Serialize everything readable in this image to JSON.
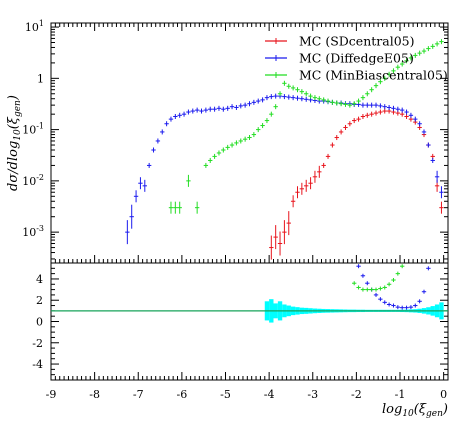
{
  "chart_data": [
    {
      "type": "scatter",
      "panel": "main",
      "xlabel": "log10(ξgen)",
      "ylabel": "dσ/dlog10(ξgen)",
      "yscale": "log",
      "xlim": [
        -9,
        0.1
      ],
      "ylim": [
        0.00025,
        12
      ],
      "y_ticks": [
        {
          "value": 0.001,
          "base": "10",
          "exp": "-3"
        },
        {
          "value": 0.01,
          "base": "10",
          "exp": "-2"
        },
        {
          "value": 0.1,
          "base": "10",
          "exp": "-1"
        },
        {
          "value": 1,
          "base": "1",
          "exp": ""
        },
        {
          "value": 10,
          "base": "10",
          "exp": "1"
        }
      ],
      "legend": {
        "placement": "top-right"
      },
      "series": [
        {
          "name": "MC (SDcentral05)",
          "color": "#e8141c",
          "points": [
            [
              -3.95,
              0.0005
            ],
            [
              -3.85,
              0.0008
            ],
            [
              -3.75,
              0.0006
            ],
            [
              -3.65,
              0.001
            ],
            [
              -3.55,
              0.0015
            ],
            [
              -3.45,
              0.004
            ],
            [
              -3.35,
              0.006
            ],
            [
              -3.25,
              0.007
            ],
            [
              -3.15,
              0.008
            ],
            [
              -3.05,
              0.009
            ],
            [
              -2.95,
              0.012
            ],
            [
              -2.85,
              0.015
            ],
            [
              -2.75,
              0.02
            ],
            [
              -2.65,
              0.03
            ],
            [
              -2.55,
              0.05
            ],
            [
              -2.45,
              0.07
            ],
            [
              -2.35,
              0.09
            ],
            [
              -2.25,
              0.11
            ],
            [
              -2.15,
              0.13
            ],
            [
              -2.05,
              0.15
            ],
            [
              -1.95,
              0.16
            ],
            [
              -1.85,
              0.18
            ],
            [
              -1.75,
              0.19
            ],
            [
              -1.65,
              0.2
            ],
            [
              -1.55,
              0.21
            ],
            [
              -1.45,
              0.22
            ],
            [
              -1.35,
              0.23
            ],
            [
              -1.25,
              0.23
            ],
            [
              -1.15,
              0.22
            ],
            [
              -1.05,
              0.21
            ],
            [
              -0.95,
              0.2
            ],
            [
              -0.85,
              0.18
            ],
            [
              -0.75,
              0.16
            ],
            [
              -0.65,
              0.14
            ],
            [
              -0.55,
              0.11
            ],
            [
              -0.45,
              0.08
            ],
            [
              -0.35,
              0.05
            ],
            [
              -0.25,
              0.03
            ],
            [
              -0.15,
              0.008
            ],
            [
              -0.05,
              0.003
            ]
          ]
        },
        {
          "name": "MC (DiffedgeE05)",
          "color": "#1a1aee",
          "points": [
            [
              -7.25,
              0.001
            ],
            [
              -7.15,
              0.002
            ],
            [
              -7.05,
              0.005
            ],
            [
              -6.95,
              0.009
            ],
            [
              -6.85,
              0.008
            ],
            [
              -6.75,
              0.02
            ],
            [
              -6.65,
              0.04
            ],
            [
              -6.55,
              0.06
            ],
            [
              -6.45,
              0.09
            ],
            [
              -6.35,
              0.13
            ],
            [
              -6.25,
              0.16
            ],
            [
              -6.15,
              0.18
            ],
            [
              -6.05,
              0.19
            ],
            [
              -5.95,
              0.2
            ],
            [
              -5.85,
              0.22
            ],
            [
              -5.75,
              0.23
            ],
            [
              -5.65,
              0.24
            ],
            [
              -5.55,
              0.23
            ],
            [
              -5.45,
              0.24
            ],
            [
              -5.35,
              0.25
            ],
            [
              -5.25,
              0.25
            ],
            [
              -5.15,
              0.26
            ],
            [
              -5.05,
              0.25
            ],
            [
              -4.95,
              0.26
            ],
            [
              -4.85,
              0.28
            ],
            [
              -4.75,
              0.27
            ],
            [
              -4.65,
              0.29
            ],
            [
              -4.55,
              0.3
            ],
            [
              -4.45,
              0.32
            ],
            [
              -4.35,
              0.34
            ],
            [
              -4.25,
              0.36
            ],
            [
              -4.15,
              0.38
            ],
            [
              -4.05,
              0.42
            ],
            [
              -3.95,
              0.44
            ],
            [
              -3.85,
              0.45
            ],
            [
              -3.75,
              0.45
            ],
            [
              -3.65,
              0.44
            ],
            [
              -3.55,
              0.43
            ],
            [
              -3.45,
              0.42
            ],
            [
              -3.35,
              0.41
            ],
            [
              -3.25,
              0.4
            ],
            [
              -3.15,
              0.39
            ],
            [
              -3.05,
              0.38
            ],
            [
              -2.95,
              0.37
            ],
            [
              -2.85,
              0.36
            ],
            [
              -2.75,
              0.36
            ],
            [
              -2.65,
              0.35
            ],
            [
              -2.55,
              0.34
            ],
            [
              -2.45,
              0.33
            ],
            [
              -2.35,
              0.33
            ],
            [
              -2.25,
              0.32
            ],
            [
              -2.15,
              0.32
            ],
            [
              -2.05,
              0.31
            ],
            [
              -1.95,
              0.31
            ],
            [
              -1.85,
              0.3
            ],
            [
              -1.75,
              0.3
            ],
            [
              -1.65,
              0.3
            ],
            [
              -1.55,
              0.3
            ],
            [
              -1.45,
              0.29
            ],
            [
              -1.35,
              0.28
            ],
            [
              -1.25,
              0.27
            ],
            [
              -1.15,
              0.26
            ],
            [
              -1.05,
              0.25
            ],
            [
              -0.95,
              0.24
            ],
            [
              -0.85,
              0.22
            ],
            [
              -0.75,
              0.19
            ],
            [
              -0.65,
              0.16
            ],
            [
              -0.55,
              0.13
            ],
            [
              -0.45,
              0.09
            ],
            [
              -0.35,
              0.05
            ],
            [
              -0.25,
              0.025
            ],
            [
              -0.15,
              0.012
            ],
            [
              -0.05,
              0.006
            ]
          ]
        },
        {
          "name": "MC (MinBiascentral05)",
          "color": "#22dd22",
          "points": [
            [
              -6.25,
              0.003
            ],
            [
              -6.15,
              0.003
            ],
            [
              -6.05,
              0.003
            ],
            [
              -5.85,
              0.01
            ],
            [
              -5.65,
              0.003
            ],
            [
              -5.45,
              0.02
            ],
            [
              -5.35,
              0.025
            ],
            [
              -5.25,
              0.03
            ],
            [
              -5.15,
              0.035
            ],
            [
              -5.05,
              0.04
            ],
            [
              -4.95,
              0.045
            ],
            [
              -4.85,
              0.05
            ],
            [
              -4.75,
              0.055
            ],
            [
              -4.65,
              0.06
            ],
            [
              -4.55,
              0.065
            ],
            [
              -4.45,
              0.07
            ],
            [
              -4.35,
              0.08
            ],
            [
              -4.25,
              0.1
            ],
            [
              -4.15,
              0.12
            ],
            [
              -4.05,
              0.15
            ],
            [
              -3.95,
              0.2
            ],
            [
              -3.85,
              0.28
            ],
            [
              -3.75,
              0.5
            ],
            [
              -3.65,
              0.8
            ],
            [
              -3.55,
              0.7
            ],
            [
              -3.45,
              0.65
            ],
            [
              -3.35,
              0.6
            ],
            [
              -3.25,
              0.55
            ],
            [
              -3.15,
              0.5
            ],
            [
              -3.05,
              0.45
            ],
            [
              -2.95,
              0.42
            ],
            [
              -2.85,
              0.4
            ],
            [
              -2.75,
              0.38
            ],
            [
              -2.65,
              0.36
            ],
            [
              -2.55,
              0.34
            ],
            [
              -2.45,
              0.33
            ],
            [
              -2.35,
              0.32
            ],
            [
              -2.25,
              0.31
            ],
            [
              -2.15,
              0.3
            ],
            [
              -2.05,
              0.32
            ],
            [
              -1.95,
              0.36
            ],
            [
              -1.85,
              0.42
            ],
            [
              -1.75,
              0.5
            ],
            [
              -1.65,
              0.6
            ],
            [
              -1.55,
              0.72
            ],
            [
              -1.45,
              0.86
            ],
            [
              -1.35,
              1.0
            ],
            [
              -1.25,
              1.2
            ],
            [
              -1.15,
              1.4
            ],
            [
              -1.05,
              1.65
            ],
            [
              -0.95,
              1.9
            ],
            [
              -0.85,
              2.2
            ],
            [
              -0.75,
              2.5
            ],
            [
              -0.65,
              2.8
            ],
            [
              -0.55,
              3.1
            ],
            [
              -0.45,
              3.4
            ],
            [
              -0.35,
              3.8
            ],
            [
              -0.25,
              4.2
            ],
            [
              -0.15,
              4.7
            ],
            [
              -0.05,
              5.2
            ]
          ]
        }
      ]
    },
    {
      "type": "scatter",
      "panel": "ratio",
      "xlabel": "log10(ξgen)",
      "xlim": [
        -9,
        0.1
      ],
      "ylim": [
        -5.5,
        5.5
      ],
      "x_ticks": [
        "-9",
        "-8",
        "-7",
        "-6",
        "-5",
        "-4",
        "-3",
        "-2",
        "-1",
        "0"
      ],
      "y_ticks": [
        "4",
        "2",
        "0",
        "-2",
        "-4"
      ],
      "reference_line": 1,
      "band_color": "#00ffff",
      "series": [
        {
          "color": "#1a1aee",
          "points": [
            [
              -1.95,
              5.2
            ],
            [
              -1.85,
              4.3
            ],
            [
              -1.75,
              3.6
            ],
            [
              -1.65,
              3.0
            ],
            [
              -1.55,
              2.5
            ],
            [
              -1.45,
              2.1
            ],
            [
              -1.35,
              1.8
            ],
            [
              -1.25,
              1.6
            ],
            [
              -1.15,
              1.5
            ],
            [
              -1.05,
              1.35
            ],
            [
              -0.95,
              1.3
            ],
            [
              -0.85,
              1.3
            ],
            [
              -0.75,
              1.35
            ],
            [
              -0.65,
              1.5
            ],
            [
              -0.55,
              1.9
            ],
            [
              -0.45,
              2.8
            ],
            [
              -0.35,
              5.0
            ]
          ]
        },
        {
          "color": "#22dd22",
          "points": [
            [
              -2.05,
              3.6
            ],
            [
              -1.95,
              3.2
            ],
            [
              -1.85,
              3.0
            ],
            [
              -1.75,
              3.0
            ],
            [
              -1.65,
              3.0
            ],
            [
              -1.55,
              3.0
            ],
            [
              -1.45,
              3.1
            ],
            [
              -1.35,
              3.2
            ],
            [
              -1.25,
              3.5
            ],
            [
              -1.15,
              3.9
            ],
            [
              -1.05,
              4.5
            ],
            [
              -0.95,
              5.2
            ]
          ]
        }
      ]
    }
  ]
}
